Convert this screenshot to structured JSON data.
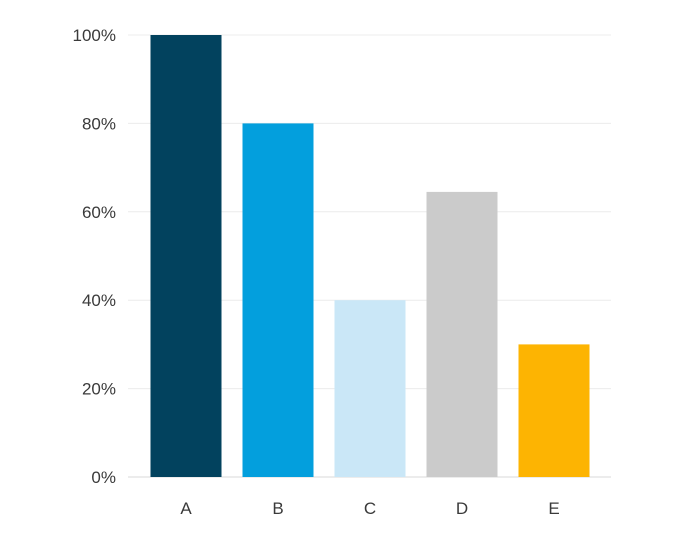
{
  "chart_data": {
    "type": "bar",
    "categories": [
      "A",
      "B",
      "C",
      "D",
      "E"
    ],
    "values": [
      100,
      80,
      40,
      64.5,
      30
    ],
    "colors": [
      "#02425e",
      "#039fdd",
      "#cae7f7",
      "#cbcbcb",
      "#fdb402"
    ],
    "ylim": [
      0,
      100
    ],
    "yticks": [
      0,
      20,
      40,
      60,
      80,
      100
    ],
    "ytick_labels": [
      "0%",
      "20%",
      "40%",
      "60%",
      "80%",
      "100%"
    ],
    "grid": true,
    "legend": false,
    "title": "",
    "xlabel": "",
    "ylabel": ""
  }
}
